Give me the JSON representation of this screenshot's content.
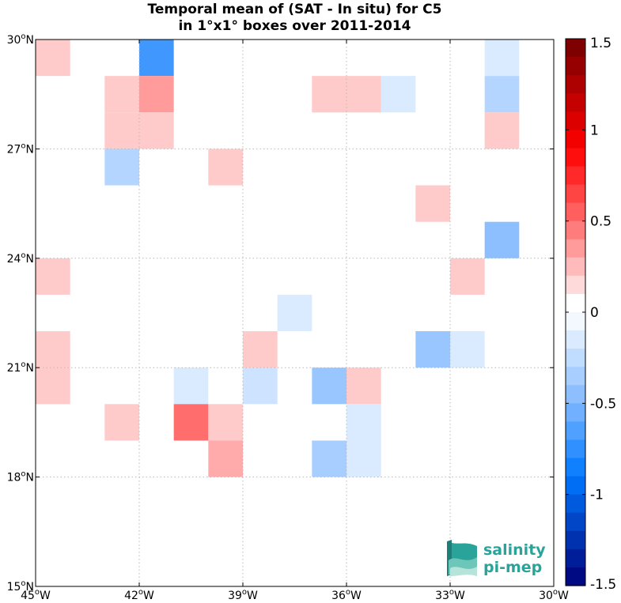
{
  "title_line1": "Temporal mean of (SAT - In situ) for C5",
  "title_line2": "in 1°x1° boxes over 2011-2014",
  "chart_data": {
    "type": "heatmap",
    "lon_range": [
      -45,
      -30
    ],
    "lat_range": [
      15,
      30
    ],
    "grid_lines": true,
    "x_ticks": [
      {
        "value": -45,
        "deg": "45",
        "hemi": "W"
      },
      {
        "value": -42,
        "deg": "42",
        "hemi": "W"
      },
      {
        "value": -39,
        "deg": "39",
        "hemi": "W"
      },
      {
        "value": -36,
        "deg": "36",
        "hemi": "W"
      },
      {
        "value": -33,
        "deg": "33",
        "hemi": "W"
      },
      {
        "value": -30,
        "deg": "30",
        "hemi": "W"
      }
    ],
    "y_ticks": [
      {
        "value": 15,
        "deg": "15",
        "hemi": "N"
      },
      {
        "value": 18,
        "deg": "18",
        "hemi": "N"
      },
      {
        "value": 21,
        "deg": "21",
        "hemi": "N"
      },
      {
        "value": 24,
        "deg": "24",
        "hemi": "N"
      },
      {
        "value": 27,
        "deg": "27",
        "hemi": "N"
      },
      {
        "value": 30,
        "deg": "30",
        "hemi": "N"
      }
    ],
    "cells": [
      {
        "lon": -45,
        "lat": 29,
        "value": 0.2
      },
      {
        "lon": -42,
        "lat": 29,
        "value": -0.7
      },
      {
        "lon": -32,
        "lat": 29,
        "value": -0.15
      },
      {
        "lon": -43,
        "lat": 28,
        "value": 0.2
      },
      {
        "lon": -42,
        "lat": 28,
        "value": 0.35
      },
      {
        "lon": -37,
        "lat": 28,
        "value": 0.2
      },
      {
        "lon": -36,
        "lat": 28,
        "value": 0.2
      },
      {
        "lon": -35,
        "lat": 28,
        "value": -0.15
      },
      {
        "lon": -32,
        "lat": 28,
        "value": -0.3
      },
      {
        "lon": -43,
        "lat": 27,
        "value": 0.2
      },
      {
        "lon": -42,
        "lat": 27,
        "value": 0.2
      },
      {
        "lon": -32,
        "lat": 27,
        "value": 0.2
      },
      {
        "lon": -43,
        "lat": 26,
        "value": -0.3
      },
      {
        "lon": -40,
        "lat": 26,
        "value": 0.2
      },
      {
        "lon": -34,
        "lat": 25,
        "value": 0.2
      },
      {
        "lon": -32,
        "lat": 24,
        "value": -0.45
      },
      {
        "lon": -45,
        "lat": 23,
        "value": 0.2
      },
      {
        "lon": -33,
        "lat": 23,
        "value": 0.2
      },
      {
        "lon": -38,
        "lat": 22,
        "value": -0.15
      },
      {
        "lon": -45,
        "lat": 21,
        "value": 0.2
      },
      {
        "lon": -39,
        "lat": 21,
        "value": 0.2
      },
      {
        "lon": -34,
        "lat": 21,
        "value": -0.4
      },
      {
        "lon": -33,
        "lat": 21,
        "value": -0.15
      },
      {
        "lon": -45,
        "lat": 20,
        "value": 0.2
      },
      {
        "lon": -41,
        "lat": 20,
        "value": -0.15
      },
      {
        "lon": -39,
        "lat": 20,
        "value": -0.2
      },
      {
        "lon": -37,
        "lat": 20,
        "value": -0.4
      },
      {
        "lon": -36,
        "lat": 20,
        "value": 0.2
      },
      {
        "lon": -43,
        "lat": 19,
        "value": 0.2
      },
      {
        "lon": -41,
        "lat": 19,
        "value": 0.5
      },
      {
        "lon": -40,
        "lat": 19,
        "value": 0.2
      },
      {
        "lon": -36,
        "lat": 19,
        "value": -0.15
      },
      {
        "lon": -40,
        "lat": 18,
        "value": 0.3
      },
      {
        "lon": -37,
        "lat": 18,
        "value": -0.35
      },
      {
        "lon": -36,
        "lat": 18,
        "value": -0.15
      }
    ],
    "colorbar": {
      "range": [
        -1.5,
        1.5
      ],
      "step": 0.1,
      "ticks": [
        {
          "value": 1.5,
          "label": "1.5"
        },
        {
          "value": 1,
          "label": "1"
        },
        {
          "value": 0.5,
          "label": "0.5"
        },
        {
          "value": 0,
          "label": "0"
        },
        {
          "value": -0.5,
          "label": "-0.5"
        },
        {
          "value": -1,
          "label": "-1"
        },
        {
          "value": -1.5,
          "label": "-1.5"
        }
      ]
    }
  },
  "logo": {
    "line1": "salinity",
    "line2": "pi-mep",
    "color": "#2aa39a"
  }
}
